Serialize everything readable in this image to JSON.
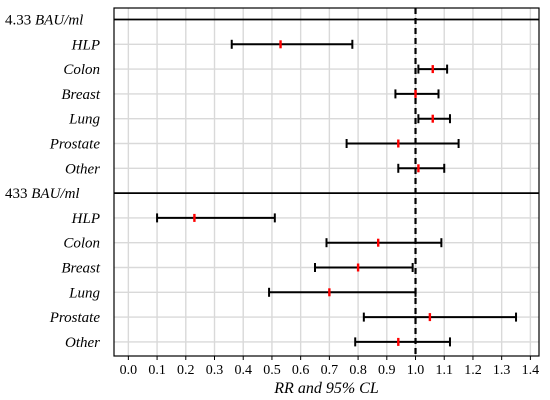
{
  "chart_data": {
    "type": "forest",
    "xlabel": "RR  and  95% CL",
    "xlim": [
      -0.05,
      1.43
    ],
    "xticks": [
      0.0,
      0.1,
      0.2,
      0.3,
      0.4,
      0.5,
      0.6,
      0.7,
      0.8,
      0.9,
      1.0,
      1.1,
      1.2,
      1.3,
      1.4
    ],
    "xtick_labels": [
      "0.0",
      "0.1",
      "0.2",
      "0.3",
      "0.4",
      "0.5",
      "0.6",
      "0.7",
      "0.8",
      "0.9",
      "1.0",
      "1.1",
      "1.2",
      "1.3",
      "1.4"
    ],
    "reference_line": 1.0,
    "grid": true,
    "point_color": "#ff0000",
    "line_color": "#000000",
    "groups": [
      {
        "label_num": "4.33",
        "label_unit": "BAU/ml",
        "rows": [
          {
            "name": "HLP",
            "rr": 0.53,
            "lower": 0.36,
            "upper": 0.78
          },
          {
            "name": "Colon",
            "rr": 1.06,
            "lower": 1.01,
            "upper": 1.11
          },
          {
            "name": "Breast",
            "rr": 1.0,
            "lower": 0.93,
            "upper": 1.08
          },
          {
            "name": "Lung",
            "rr": 1.06,
            "lower": 1.01,
            "upper": 1.12
          },
          {
            "name": "Prostate",
            "rr": 0.94,
            "lower": 0.76,
            "upper": 1.15
          },
          {
            "name": "Other",
            "rr": 1.01,
            "lower": 0.94,
            "upper": 1.1
          }
        ]
      },
      {
        "label_num": "433",
        "label_unit": "BAU/ml",
        "rows": [
          {
            "name": "HLP",
            "rr": 0.23,
            "lower": 0.1,
            "upper": 0.51
          },
          {
            "name": "Colon",
            "rr": 0.87,
            "lower": 0.69,
            "upper": 1.09
          },
          {
            "name": "Breast",
            "rr": 0.8,
            "lower": 0.65,
            "upper": 0.99
          },
          {
            "name": "Lung",
            "rr": 0.7,
            "lower": 0.49,
            "upper": 1.0
          },
          {
            "name": "Prostate",
            "rr": 1.05,
            "lower": 0.82,
            "upper": 1.35
          },
          {
            "name": "Other",
            "rr": 0.94,
            "lower": 0.79,
            "upper": 1.12
          }
        ]
      }
    ]
  }
}
